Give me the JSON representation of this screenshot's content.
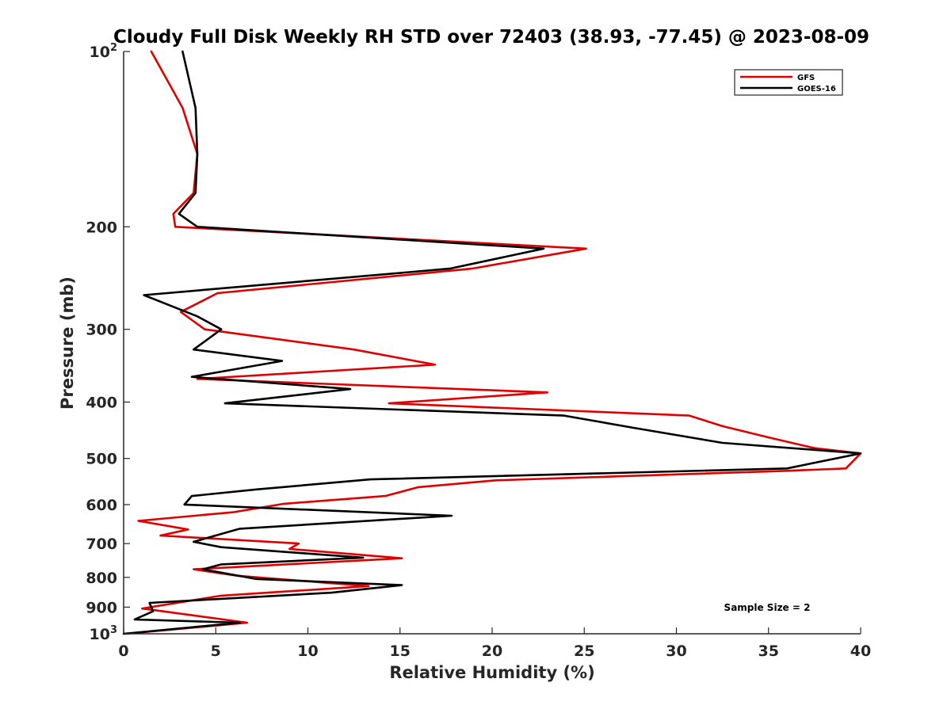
{
  "chart_data": {
    "type": "line",
    "title": "Cloudy Full Disk Weekly RH STD over 72403 (38.93, -77.45) @ 2023-08-09",
    "xlabel": "Relative Humidity (%)",
    "ylabel": "Pressure (mb)",
    "xlim": [
      0,
      40
    ],
    "ylim": [
      100,
      1000
    ],
    "y_scale": "log",
    "y_reversed": true,
    "x_ticks": [
      0,
      5,
      10,
      15,
      20,
      25,
      30,
      35,
      40
    ],
    "y_ticks": [
      100,
      200,
      300,
      400,
      500,
      600,
      700,
      800,
      900,
      1000
    ],
    "y_tick_labels": [
      {
        "base": "10",
        "exp": "2"
      },
      {
        "base": "200"
      },
      {
        "base": "300"
      },
      {
        "base": "400"
      },
      {
        "base": "500"
      },
      {
        "base": "600"
      },
      {
        "base": "700"
      },
      {
        "base": "800"
      },
      {
        "base": "900"
      },
      {
        "base": "10",
        "exp": "3"
      }
    ],
    "legend_position": "top-right",
    "grid": false,
    "annotation": "Sample Size = 2",
    "series": [
      {
        "name": "GFS",
        "color": "#e00000",
        "points": [
          [
            1.5,
            100
          ],
          [
            3.2,
            125
          ],
          [
            4.0,
            150
          ],
          [
            3.8,
            175
          ],
          [
            2.7,
            190
          ],
          [
            2.8,
            200
          ],
          [
            25.1,
            218
          ],
          [
            18.9,
            236
          ],
          [
            5.1,
            260
          ],
          [
            3.1,
            280
          ],
          [
            4.4,
            300
          ],
          [
            12.5,
            325
          ],
          [
            16.9,
            345
          ],
          [
            4.0,
            365
          ],
          [
            23.0,
            385
          ],
          [
            14.4,
            402
          ],
          [
            30.7,
            422
          ],
          [
            32.5,
            440
          ],
          [
            35.0,
            460
          ],
          [
            37.5,
            480
          ],
          [
            40.0,
            490
          ],
          [
            39.2,
            520
          ],
          [
            36.0,
            525
          ],
          [
            20.2,
            545
          ],
          [
            16.0,
            560
          ],
          [
            14.2,
            580
          ],
          [
            8.7,
            598
          ],
          [
            6.0,
            618
          ],
          [
            0.8,
            640
          ],
          [
            3.5,
            662
          ],
          [
            2.0,
            678
          ],
          [
            9.5,
            700
          ],
          [
            9.0,
            715
          ],
          [
            15.1,
            742
          ],
          [
            3.8,
            775
          ],
          [
            6.2,
            795
          ],
          [
            13.3,
            828
          ],
          [
            5.3,
            860
          ],
          [
            1.0,
            905
          ],
          [
            6.7,
            957
          ],
          [
            0.1,
            1000
          ]
        ]
      },
      {
        "name": "GOES-16",
        "color": "#000000",
        "points": [
          [
            3.2,
            100
          ],
          [
            3.9,
            125
          ],
          [
            4.0,
            150
          ],
          [
            3.9,
            175
          ],
          [
            3.0,
            190
          ],
          [
            4.0,
            200
          ],
          [
            22.8,
            218
          ],
          [
            17.7,
            236
          ],
          [
            1.1,
            262
          ],
          [
            4.0,
            285
          ],
          [
            5.3,
            300
          ],
          [
            3.8,
            325
          ],
          [
            8.6,
            340
          ],
          [
            3.7,
            362
          ],
          [
            12.3,
            380
          ],
          [
            5.5,
            402
          ],
          [
            23.9,
            422
          ],
          [
            27.7,
            443
          ],
          [
            32.5,
            470
          ],
          [
            40.0,
            490
          ],
          [
            36.0,
            520
          ],
          [
            13.4,
            543
          ],
          [
            7.2,
            565
          ],
          [
            3.7,
            580
          ],
          [
            3.3,
            600
          ],
          [
            17.8,
            627
          ],
          [
            6.3,
            660
          ],
          [
            3.8,
            695
          ],
          [
            5.3,
            710
          ],
          [
            13.0,
            740
          ],
          [
            5.3,
            760
          ],
          [
            4.3,
            775
          ],
          [
            7.2,
            805
          ],
          [
            15.1,
            825
          ],
          [
            11.3,
            850
          ],
          [
            1.4,
            885
          ],
          [
            1.6,
            915
          ],
          [
            0.6,
            945
          ],
          [
            6.3,
            957
          ],
          [
            0.0,
            1000
          ]
        ]
      }
    ]
  }
}
